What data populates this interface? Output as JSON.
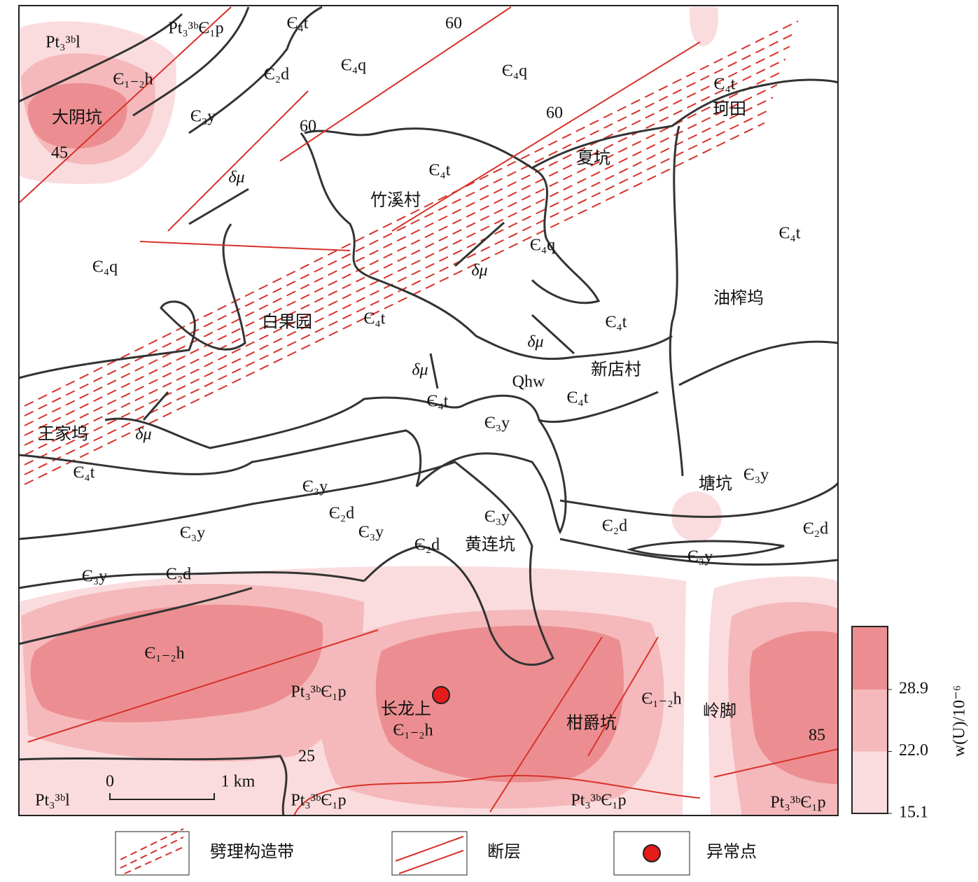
{
  "strata": [
    "Pt₃³ᵇl",
    "Pt₃³ᵇЄ₁p",
    "Є₄t",
    "Є₁₋₂h",
    "Є₂d",
    "Є₄q",
    "Є₄q",
    "Є₃y",
    "Є₄t",
    "Є₄t",
    "Є₄t",
    "Є₄q",
    "Є₄q",
    "Є₄t",
    "Є₄t",
    "Є₄t",
    "Є₃y",
    "Є₄t",
    "Є₄t",
    "Є₃y",
    "Є₃y",
    "Є₂d",
    "Є₃y",
    "Є₂d",
    "Є₂d",
    "Є₃y",
    "Є₃y",
    "Є₂d",
    "Є₃y",
    "Є₃y",
    "Є₂d",
    "Є₁₋₂h",
    "Pt₃³ᵇЄ₁p",
    "Є₁₋₂h",
    "Є₁₋₂h",
    "Pt₃³ᵇl",
    "Pt₃³ᵇЄ₁p",
    "Pt₃³ᵇЄ₁p",
    "Pt₃³ᵇЄ₁p",
    "Qhw"
  ],
  "places": [
    "大阴坑",
    "竹溪村",
    "夏坑",
    "珂田",
    "白果园",
    "油榨坞",
    "新店村",
    "王家坞",
    "塘坑",
    "黄连坑",
    "长龙上",
    "柑爵坑",
    "岭脚"
  ],
  "intrusions": [
    "δμ",
    "δμ",
    "δμ",
    "δμ",
    "δμ"
  ],
  "dips": [
    60,
    60,
    60,
    45,
    25,
    85
  ],
  "scale_bar": [
    "0",
    "1 km"
  ],
  "colorbar": {
    "title": "w(U)/10⁻⁶",
    "ticks": [
      28.9,
      {
        "value": 22,
        "label": "22.0"
      },
      15.1
    ],
    "colors": [
      "#ec8e91",
      "#f5b9bb",
      "#fbdcde"
    ]
  },
  "legend": [
    "劈理构造带",
    "断层",
    "异常点"
  ]
}
